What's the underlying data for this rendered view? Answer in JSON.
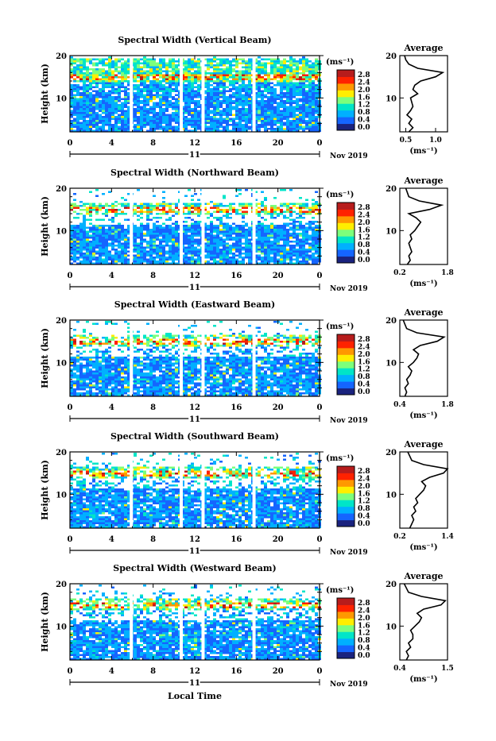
{
  "figure": {
    "common_xlabel": "Local Time",
    "month_label": "Nov 2019",
    "day_label": "11",
    "unit_label": "(ms⁻¹)",
    "colorbar_ticks": [
      "2.8",
      "2.4",
      "2.0",
      "1.6",
      "1.2",
      "0.8",
      "0.4",
      "0.0"
    ],
    "colormap": [
      "#1a237e",
      "#1565ff",
      "#00b0ff",
      "#00e5c8",
      "#7cff7c",
      "#ffee00",
      "#ff9800",
      "#ff2200",
      "#b71c1c"
    ]
  },
  "chart_data": [
    {
      "type": "heatmap",
      "title": "Spectral Width (Vertical Beam)",
      "ylabel": "Height (km)",
      "x_ticks": [
        "0",
        "4",
        "8",
        "12",
        "16",
        "20",
        "0"
      ],
      "xlim": [
        0,
        24
      ],
      "ylim": [
        2,
        20
      ],
      "y_ticks": [
        "20",
        "10"
      ],
      "data_gaps_hours": [
        5.9,
        10.7,
        12.8,
        17.7
      ],
      "profile": {
        "title": "Average",
        "xlabel": "(ms⁻¹)",
        "x_ticks": [
          "0.5",
          "1.0"
        ],
        "xlim": [
          0.4,
          1.2
        ],
        "height_km": [
          2,
          3,
          4,
          5,
          6,
          7,
          8,
          9,
          10,
          11,
          12,
          13,
          14,
          15,
          16,
          17,
          18,
          19,
          20
        ],
        "values": [
          0.55,
          0.62,
          0.55,
          0.6,
          0.52,
          0.58,
          0.62,
          0.6,
          0.58,
          0.7,
          0.62,
          0.65,
          0.75,
          1.0,
          1.12,
          0.7,
          0.55,
          0.5,
          0.48
        ]
      }
    },
    {
      "type": "heatmap",
      "title": "Spectral Width (Northward Beam)",
      "ylabel": "Height (km)",
      "x_ticks": [
        "0",
        "4",
        "8",
        "12",
        "16",
        "20",
        "0"
      ],
      "xlim": [
        0,
        24
      ],
      "ylim": [
        2,
        20
      ],
      "y_ticks": [
        "20",
        "10"
      ],
      "data_gaps_hours": [
        5.9,
        10.7,
        12.8,
        17.7
      ],
      "profile": {
        "title": "Average",
        "xlabel": "(ms⁻¹)",
        "x_ticks": [
          "0.2",
          "1.8"
        ],
        "xlim": [
          0.2,
          1.8
        ],
        "height_km": [
          2,
          3,
          4,
          5,
          6,
          7,
          8,
          9,
          10,
          11,
          12,
          13,
          14,
          15,
          16,
          17,
          18,
          19,
          20
        ],
        "values": [
          0.45,
          0.55,
          0.5,
          0.6,
          0.55,
          0.5,
          0.6,
          0.55,
          0.7,
          0.8,
          0.9,
          0.75,
          0.5,
          1.2,
          1.6,
          0.85,
          0.5,
          0.45,
          0.4
        ]
      }
    },
    {
      "type": "heatmap",
      "title": "Spectral Width (Eastward Beam)",
      "ylabel": "Height (km)",
      "x_ticks": [
        "0",
        "4",
        "8",
        "12",
        "16",
        "20",
        "0"
      ],
      "xlim": [
        0,
        24
      ],
      "ylim": [
        2,
        20
      ],
      "y_ticks": [
        "20",
        "10"
      ],
      "data_gaps_hours": [
        5.9,
        10.7,
        12.8,
        17.7
      ],
      "profile": {
        "title": "Average",
        "xlabel": "(ms⁻¹)",
        "x_ticks": [
          "0.4",
          "1.8"
        ],
        "xlim": [
          0.4,
          1.8
        ],
        "height_km": [
          2,
          3,
          4,
          5,
          6,
          7,
          8,
          9,
          10,
          11,
          12,
          13,
          14,
          15,
          16,
          17,
          18,
          19,
          20
        ],
        "values": [
          0.55,
          0.6,
          0.55,
          0.65,
          0.6,
          0.7,
          0.75,
          0.65,
          0.8,
          0.9,
          0.95,
          0.8,
          1.0,
          1.5,
          1.7,
          0.9,
          0.6,
          0.55,
          0.5
        ]
      }
    },
    {
      "type": "heatmap",
      "title": "Spectral Width (Southward Beam)",
      "ylabel": "Height (km)",
      "x_ticks": [
        "0",
        "4",
        "8",
        "12",
        "16",
        "20",
        "0"
      ],
      "xlim": [
        0,
        24
      ],
      "ylim": [
        2,
        20
      ],
      "y_ticks": [
        "20",
        "10"
      ],
      "data_gaps_hours": [
        5.9,
        10.7,
        12.8,
        17.7
      ],
      "profile": {
        "title": "Average",
        "xlabel": "(ms⁻¹)",
        "x_ticks": [
          "0.2",
          "1.4"
        ],
        "xlim": [
          0.2,
          1.4
        ],
        "height_km": [
          2,
          3,
          4,
          5,
          6,
          7,
          8,
          9,
          10,
          11,
          12,
          13,
          14,
          15,
          16,
          17,
          18,
          19,
          20
        ],
        "values": [
          0.45,
          0.5,
          0.55,
          0.5,
          0.6,
          0.55,
          0.65,
          0.6,
          0.7,
          0.8,
          0.85,
          0.75,
          0.95,
          1.3,
          1.4,
          0.8,
          0.5,
          0.45,
          0.4
        ]
      }
    },
    {
      "type": "heatmap",
      "title": "Spectral Width (Westward Beam)",
      "ylabel": "Height (km)",
      "x_ticks": [
        "0",
        "4",
        "8",
        "12",
        "16",
        "20",
        "0"
      ],
      "xlim": [
        0,
        24
      ],
      "ylim": [
        2,
        20
      ],
      "y_ticks": [
        "20",
        "10"
      ],
      "data_gaps_hours": [
        5.9,
        10.7,
        12.8,
        17.7
      ],
      "profile": {
        "title": "Average",
        "xlabel": "(ms⁻¹)",
        "x_ticks": [
          "0.4",
          "1.5"
        ],
        "xlim": [
          0.4,
          1.5
        ],
        "height_km": [
          2,
          3,
          4,
          5,
          6,
          7,
          8,
          9,
          10,
          11,
          12,
          13,
          14,
          15,
          16,
          17,
          18,
          19,
          20
        ],
        "values": [
          0.55,
          0.6,
          0.55,
          0.65,
          0.6,
          0.7,
          0.7,
          0.65,
          0.75,
          0.85,
          0.9,
          0.8,
          0.95,
          1.35,
          1.45,
          0.9,
          0.6,
          0.55,
          0.5
        ]
      }
    }
  ]
}
